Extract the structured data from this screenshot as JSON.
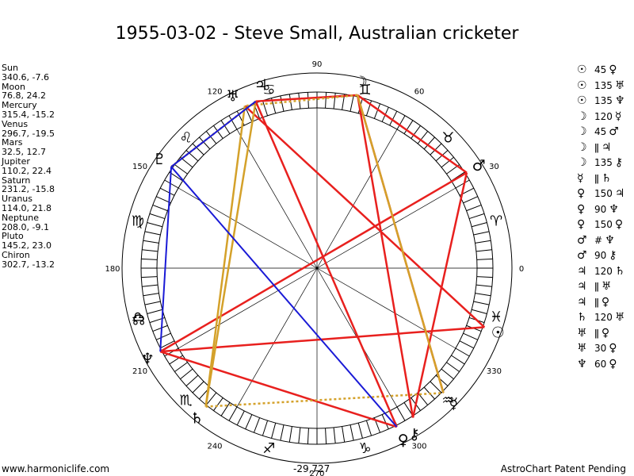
{
  "title": "1955-03-02 - Steve Small, Australian cricketer",
  "planets": [
    {
      "name": "Sun",
      "values": "340.6, -7.6",
      "lon": 340.6,
      "glyph": "☉",
      "color": "#000000",
      "glyphLon": 340.6
    },
    {
      "name": "Moon",
      "values": "76.8, 24.2",
      "lon": 76.8,
      "glyph": "☽",
      "color": "#000000",
      "glyphLon": 76.8
    },
    {
      "name": "Mercury",
      "values": "315.4, -15.2",
      "lon": 315.4,
      "glyph": "☿",
      "color": "#000000",
      "glyphLon": 315.4
    },
    {
      "name": "Venus",
      "values": "296.7, -19.5",
      "lon": 296.7,
      "glyph": "♀",
      "color": "#000000",
      "glyphLon": 296.7
    },
    {
      "name": "Mars",
      "values": "32.5, 12.7",
      "lon": 32.5,
      "glyph": "♂",
      "color": "#000000",
      "glyphLon": 32.5
    },
    {
      "name": "Jupiter",
      "values": "110.2, 22.4",
      "lon": 110.2,
      "glyph": "♃",
      "color": "#000000",
      "glyphLon": 107.0
    },
    {
      "name": "Saturn",
      "values": "231.2, -15.8",
      "lon": 231.2,
      "glyph": "♄",
      "color": "#000000",
      "glyphLon": 231.2
    },
    {
      "name": "Uranus",
      "values": "114.0, 21.8",
      "lon": 114.0,
      "glyph": "♅",
      "color": "#000000",
      "glyphLon": 116.0
    },
    {
      "name": "Neptune",
      "values": "208.0, -9.1",
      "lon": 208.0,
      "glyph": "♆",
      "color": "#000000",
      "glyphLon": 208.0
    },
    {
      "name": "Pluto",
      "values": "145.2, 23.0",
      "lon": 145.2,
      "glyph": "♇",
      "color": "#000000",
      "glyphLon": 145.2
    },
    {
      "name": "Chiron",
      "values": "302.7, -13.2",
      "lon": 302.7,
      "glyph": "⚷",
      "color": "#000000",
      "glyphLon": 300.5
    }
  ],
  "aspects": [
    {
      "p1": "☉",
      "deg": "45",
      "p2": "♀"
    },
    {
      "p1": "☉",
      "deg": "135",
      "p2": "♅"
    },
    {
      "p1": "☉",
      "deg": "135",
      "p2": "♆"
    },
    {
      "p1": "☽",
      "deg": "120",
      "p2": "☿"
    },
    {
      "p1": "☽",
      "deg": "45",
      "p2": "♂"
    },
    {
      "p1": "☽",
      "deg": "ǁ",
      "p2": "♃"
    },
    {
      "p1": "☽",
      "deg": "135",
      "p2": "⚷"
    },
    {
      "p1": "☿",
      "deg": "ǁ",
      "p2": "♄"
    },
    {
      "p1": "♀",
      "deg": "150",
      "p2": "♃"
    },
    {
      "p1": "♀",
      "deg": "90",
      "p2": "♆"
    },
    {
      "p1": "♀",
      "deg": "150",
      "p2": "♀"
    },
    {
      "p1": "♂",
      "deg": "#",
      "p2": "♆"
    },
    {
      "p1": "♂",
      "deg": "90",
      "p2": "⚷"
    },
    {
      "p1": "♃",
      "deg": "120",
      "p2": "♄"
    },
    {
      "p1": "♃",
      "deg": "ǁ",
      "p2": "♅"
    },
    {
      "p1": "♃",
      "deg": "ǁ",
      "p2": "♀"
    },
    {
      "p1": "♄",
      "deg": "120",
      "p2": "♅"
    },
    {
      "p1": "♅",
      "deg": "ǁ",
      "p2": "♀"
    },
    {
      "p1": "♅",
      "deg": "30",
      "p2": "♀"
    },
    {
      "p1": "♆",
      "deg": "60",
      "p2": "♀"
    }
  ],
  "chart_data": {
    "type": "astrological-wheel",
    "title": "1955-03-02 - Steve Small, Australian cricketer",
    "degree_labels": [
      "0",
      "30",
      "60",
      "90",
      "120",
      "150",
      "180",
      "210",
      "240",
      "270",
      "300",
      "330"
    ],
    "signs": [
      {
        "glyph": "♈",
        "lon": 15
      },
      {
        "glyph": "♉",
        "lon": 45
      },
      {
        "glyph": "♊",
        "lon": 75
      },
      {
        "glyph": "♋",
        "lon": 105
      },
      {
        "glyph": "♌",
        "lon": 135
      },
      {
        "glyph": "♍",
        "lon": 165
      },
      {
        "glyph": "♎",
        "lon": 195
      },
      {
        "glyph": "♏",
        "lon": 225
      },
      {
        "glyph": "♐",
        "lon": 255
      },
      {
        "glyph": "♑",
        "lon": 285
      },
      {
        "glyph": "♒",
        "lon": 315
      },
      {
        "glyph": "♓",
        "lon": 345
      }
    ],
    "node_lon": 196,
    "aspect_lines": [
      {
        "from": 76.8,
        "to": 315.4,
        "color": "#e8201e",
        "style": "solid"
      },
      {
        "from": 76.8,
        "to": 32.5,
        "color": "#e8201e",
        "style": "solid"
      },
      {
        "from": 76.8,
        "to": 110.2,
        "color": "#e8201e",
        "style": "solid"
      },
      {
        "from": 76.8,
        "to": 302.7,
        "color": "#e8201e",
        "style": "solid"
      },
      {
        "from": 76.8,
        "to": 114.0,
        "color": "#d4a12a",
        "style": "dotted"
      },
      {
        "from": 340.6,
        "to": 114.0,
        "color": "#e8201e",
        "style": "solid"
      },
      {
        "from": 340.6,
        "to": 208.0,
        "color": "#e8201e",
        "style": "solid"
      },
      {
        "from": 32.5,
        "to": 208.0,
        "color": "#e8201e",
        "style": "solid"
      },
      {
        "from": 32.5,
        "to": 302.7,
        "color": "#e8201e",
        "style": "solid"
      },
      {
        "from": 296.7,
        "to": 208.0,
        "color": "#e8201e",
        "style": "solid"
      },
      {
        "from": 114.0,
        "to": 231.2,
        "color": "#d4a12a",
        "style": "solid"
      },
      {
        "from": 110.2,
        "to": 231.2,
        "color": "#d4a12a",
        "style": "solid"
      },
      {
        "from": 76.8,
        "to": 315.4,
        "color": "#d4a12a",
        "style": "solid"
      },
      {
        "from": 110.2,
        "to": 145.2,
        "color": "#d4a12a",
        "style": "dotted"
      },
      {
        "from": 231.2,
        "to": 315.4,
        "color": "#d4a12a",
        "style": "dotted"
      },
      {
        "from": 110.2,
        "to": 296.7,
        "color": "#e8201e",
        "style": "solid"
      },
      {
        "from": 110.2,
        "to": 145.2,
        "color": "#1a1ad6",
        "style": "solid"
      },
      {
        "from": 145.2,
        "to": 208.0,
        "color": "#1a1ad6",
        "style": "solid"
      },
      {
        "from": 145.2,
        "to": 296.7,
        "color": "#1a1ad6",
        "style": "solid"
      }
    ]
  },
  "footer": {
    "left": "www.harmoniclife.com",
    "center": "-29,727",
    "right": "AstroChart Patent Pending"
  }
}
